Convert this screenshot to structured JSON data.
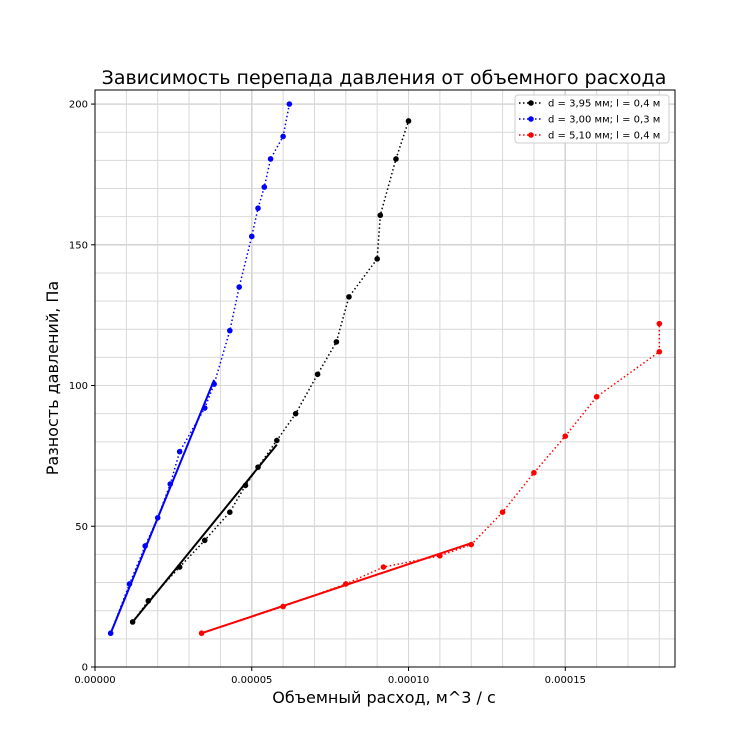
{
  "chart_data": {
    "type": "line",
    "title": "Зависимость перепада давления от объемного расхода",
    "xlabel": "Объемный расход, м^3 / с",
    "ylabel": "Разность давлений, Па",
    "xlim": [
      0,
      0.000185
    ],
    "ylim": [
      0,
      205
    ],
    "x_ticks": [
      0,
      5e-05,
      0.0001,
      0.00015
    ],
    "x_tick_labels": [
      "0.00000",
      "0.00005",
      "0.00010",
      "0.00015"
    ],
    "y_ticks": [
      0,
      50,
      100,
      150,
      200
    ],
    "y_tick_labels": [
      "0",
      "50",
      "100",
      "150",
      "200"
    ],
    "grid": true,
    "legend_position": "top-right",
    "series": [
      {
        "name": "d = 3,95 мм; l = 0,4 м",
        "color": "#000000",
        "style": "dotted-with-markers",
        "points": [
          [
            1.2e-05,
            16
          ],
          [
            1.7e-05,
            23.5
          ],
          [
            2.7e-05,
            35.5
          ],
          [
            3.5e-05,
            45
          ],
          [
            4.3e-05,
            55
          ],
          [
            4.8e-05,
            64.5
          ],
          [
            5.2e-05,
            71
          ],
          [
            5.8e-05,
            80.5
          ],
          [
            6.4e-05,
            90
          ],
          [
            7.1e-05,
            104
          ],
          [
            7.7e-05,
            115.5
          ],
          [
            8.1e-05,
            131.5
          ],
          [
            9e-05,
            145
          ],
          [
            9.1e-05,
            160.5
          ],
          [
            9.6e-05,
            180.5
          ],
          [
            0.0001,
            194
          ]
        ],
        "fit": [
          [
            1.2e-05,
            16
          ],
          [
            5.8e-05,
            79
          ]
        ]
      },
      {
        "name": "d = 3,00 мм; l = 0,3 м",
        "color": "#0000ff",
        "style": "dotted-with-markers",
        "points": [
          [
            5e-06,
            12
          ],
          [
            1.1e-05,
            29.5
          ],
          [
            1.6e-05,
            43
          ],
          [
            2e-05,
            53
          ],
          [
            2.4e-05,
            65
          ],
          [
            2.7e-05,
            76.5
          ],
          [
            3.5e-05,
            92
          ],
          [
            3.8e-05,
            100.5
          ],
          [
            4.3e-05,
            119.5
          ],
          [
            4.6e-05,
            135
          ],
          [
            5e-05,
            153
          ],
          [
            5.2e-05,
            163
          ],
          [
            5.4e-05,
            170.5
          ],
          [
            5.6e-05,
            180.5
          ],
          [
            6e-05,
            188.5
          ],
          [
            6.2e-05,
            200
          ]
        ],
        "fit": [
          [
            5e-06,
            12
          ],
          [
            3.8e-05,
            102
          ]
        ]
      },
      {
        "name": "d = 5,10 мм; l = 0,4 м",
        "color": "#ff0000",
        "style": "dotted-with-markers",
        "points": [
          [
            3.4e-05,
            12
          ],
          [
            6e-05,
            21.5
          ],
          [
            8e-05,
            29.5
          ],
          [
            9.2e-05,
            35.5
          ],
          [
            0.00011,
            39.5
          ],
          [
            0.00012,
            43.5
          ],
          [
            0.00013,
            55
          ],
          [
            0.00014,
            69
          ],
          [
            0.00015,
            82
          ],
          [
            0.00016,
            96
          ],
          [
            0.00018,
            112
          ],
          [
            0.00018,
            122
          ]
        ],
        "fit": [
          [
            3.4e-05,
            12
          ],
          [
            0.00012,
            44
          ]
        ]
      }
    ]
  }
}
